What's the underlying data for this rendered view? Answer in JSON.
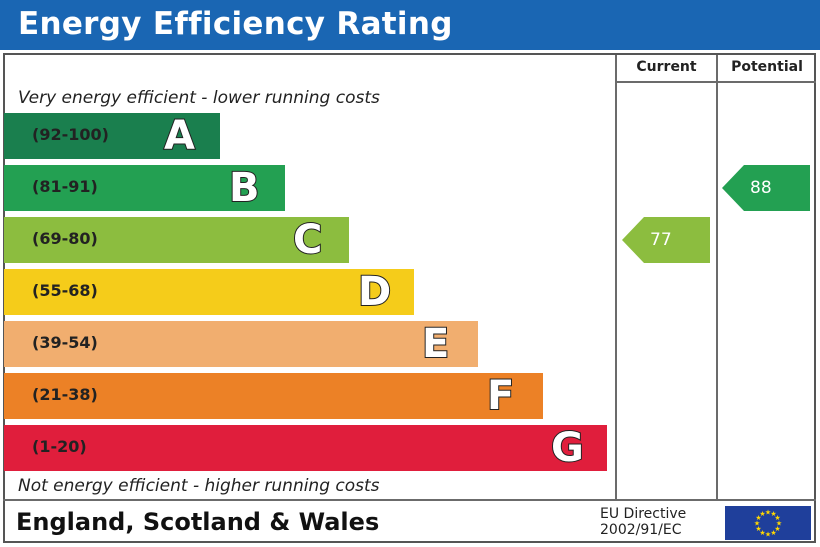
{
  "title": "Energy Efficiency Rating",
  "columns": {
    "current": "Current",
    "potential": "Potential"
  },
  "captions": {
    "top": "Very energy efficient - lower running costs",
    "bottom": "Not energy efficient - higher running costs"
  },
  "colors": {
    "title_bar": "#1a66b3",
    "A": "#1a7f4e",
    "B": "#23a052",
    "C": "#8cbd3f",
    "D": "#f5cc1a",
    "E": "#f1ae6f",
    "F": "#ec8126",
    "G": "#e01e3c",
    "current_arrow": "#8cbd3f",
    "potential_arrow": "#23a052"
  },
  "chart_data": {
    "type": "bar",
    "title": "Energy Efficiency Rating",
    "categories": [
      "A",
      "B",
      "C",
      "D",
      "E",
      "F",
      "G"
    ],
    "bands": [
      {
        "letter": "A",
        "range": "(92-100)",
        "min": 92,
        "max": 100
      },
      {
        "letter": "B",
        "range": "(81-91)",
        "min": 81,
        "max": 91
      },
      {
        "letter": "C",
        "range": "(69-80)",
        "min": 69,
        "max": 80
      },
      {
        "letter": "D",
        "range": "(55-68)",
        "min": 55,
        "max": 68
      },
      {
        "letter": "E",
        "range": "(39-54)",
        "min": 39,
        "max": 54
      },
      {
        "letter": "F",
        "range": "(21-38)",
        "min": 21,
        "max": 38
      },
      {
        "letter": "G",
        "range": "(1-20)",
        "min": 1,
        "max": 20
      }
    ],
    "series": [
      {
        "name": "Current",
        "value": 77,
        "band": "C"
      },
      {
        "name": "Potential",
        "value": 88,
        "band": "B"
      }
    ]
  },
  "footer": {
    "region": "England, Scotland & Wales",
    "directive_line1": "EU Directive",
    "directive_line2": "2002/91/EC",
    "flag": "eu-flag-icon"
  }
}
